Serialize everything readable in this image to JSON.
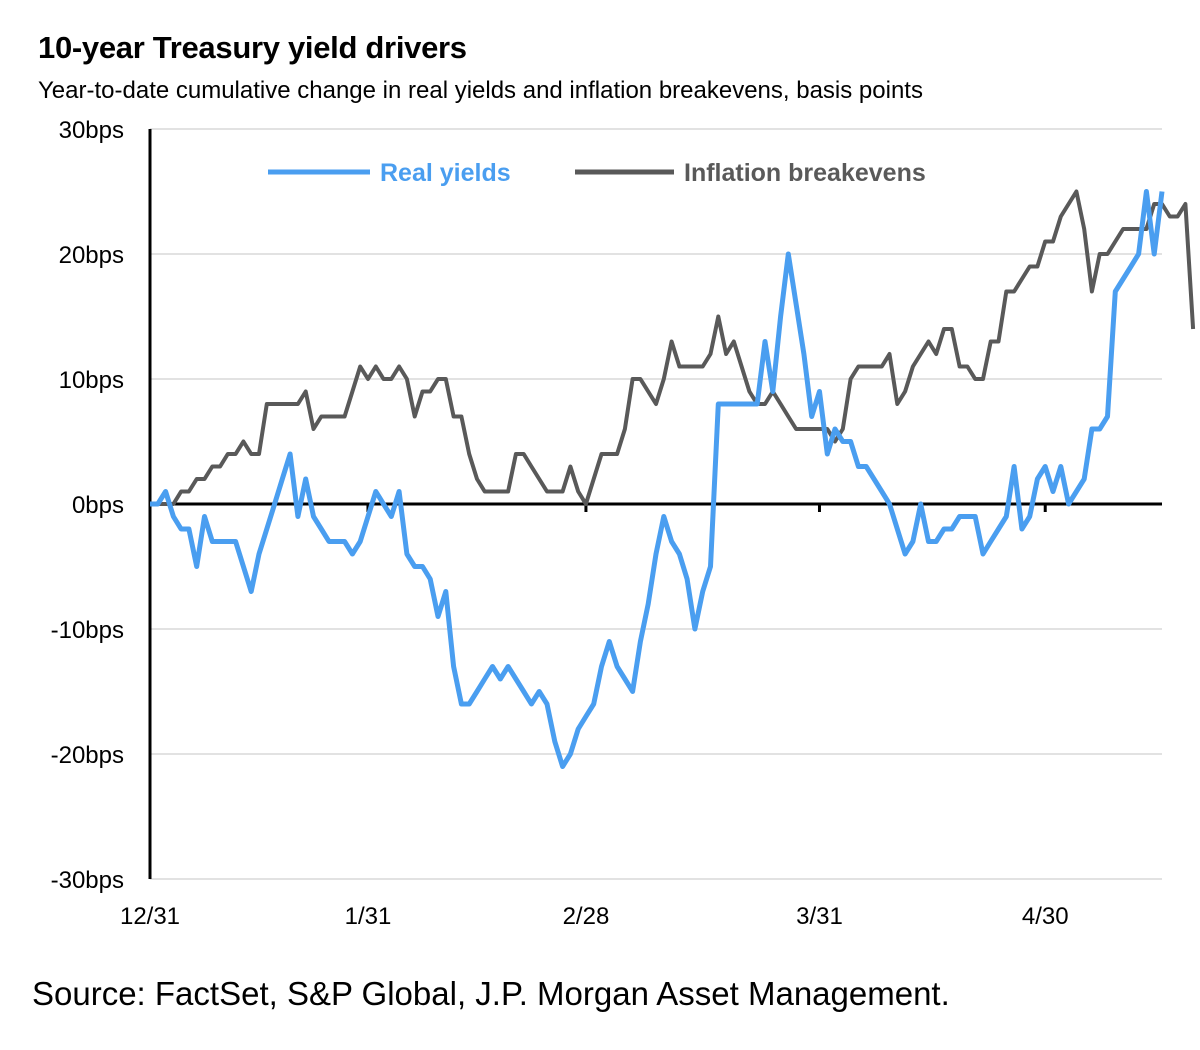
{
  "title": "10-year Treasury yield drivers",
  "subtitle": "Year-to-date cumulative change in real yields and inflation breakevens, basis points",
  "source": "Source: FactSet, S&P Global, J.P. Morgan Asset Management.",
  "chart_data": {
    "type": "line",
    "ylim": [
      -30,
      30
    ],
    "y_ticks": [
      30,
      20,
      10,
      0,
      -10,
      -20,
      -30
    ],
    "y_tick_labels": [
      "30bps",
      "20bps",
      "10bps",
      "0bps",
      "-10bps",
      "-20bps",
      "-30bps"
    ],
    "x_tick_labels": [
      "12/31",
      "1/31",
      "2/28",
      "3/31",
      "4/30"
    ],
    "grid": true,
    "legend_position": "top",
    "colors": {
      "real_yields": "#4a9ef0",
      "inflation_breakevens": "#595959"
    },
    "series": [
      {
        "name": "Real yields",
        "color": "#4a9ef0",
        "values": [
          0,
          0,
          1,
          -1,
          -2,
          -2,
          -5,
          -1,
          -3,
          -3,
          -3,
          -3,
          -5,
          -7,
          -4,
          -2,
          0,
          2,
          4,
          -1,
          2,
          -1,
          -2,
          -3,
          -3,
          -3,
          -4,
          -3,
          -1,
          1,
          0,
          -1,
          1,
          -4,
          -5,
          -5,
          -6,
          -9,
          -7,
          -13,
          -16,
          -16,
          -15,
          -14,
          -13,
          -14,
          -13,
          -14,
          -15,
          -16,
          -15,
          -16,
          -19,
          -21,
          -20,
          -18,
          -17,
          -16,
          -13,
          -11,
          -13,
          -14,
          -15,
          -11,
          -8,
          -4,
          -1,
          -3,
          -4,
          -6,
          -10,
          -7,
          -5,
          8,
          8,
          8,
          8,
          8,
          8,
          13,
          9,
          15,
          20,
          16,
          12,
          7,
          9,
          4,
          6,
          5,
          5,
          3,
          3,
          2,
          1,
          0,
          -2,
          -4,
          -3,
          0,
          -3,
          -3,
          -2,
          -2,
          -1,
          -1,
          -1,
          -4,
          -3,
          -2,
          -1,
          3,
          -2,
          -1,
          2,
          3,
          1,
          3,
          0,
          1,
          2,
          6,
          6,
          7,
          17,
          18,
          19,
          20,
          25,
          20,
          25
        ]
      },
      {
        "name": "Inflation breakevens",
        "color": "#595959",
        "values": [
          0,
          0,
          0,
          0,
          1,
          1,
          2,
          2,
          3,
          3,
          4,
          4,
          5,
          4,
          4,
          8,
          8,
          8,
          8,
          8,
          9,
          6,
          7,
          7,
          7,
          7,
          9,
          11,
          10,
          11,
          10,
          10,
          11,
          10,
          7,
          9,
          9,
          10,
          10,
          7,
          7,
          4,
          2,
          1,
          1,
          1,
          1,
          4,
          4,
          3,
          2,
          1,
          1,
          1,
          3,
          1,
          0,
          2,
          4,
          4,
          4,
          6,
          10,
          10,
          9,
          8,
          10,
          13,
          11,
          11,
          11,
          11,
          12,
          15,
          12,
          13,
          11,
          9,
          8,
          8,
          9,
          8,
          7,
          6,
          6,
          6,
          6,
          6,
          5,
          6,
          10,
          11,
          11,
          11,
          11,
          12,
          8,
          9,
          11,
          12,
          13,
          12,
          14,
          14,
          11,
          11,
          10,
          10,
          13,
          13,
          17,
          17,
          18,
          19,
          19,
          21,
          21,
          23,
          24,
          25,
          22,
          17,
          20,
          20,
          21,
          22,
          22,
          22,
          22,
          24,
          24,
          23,
          23,
          24,
          14
        ]
      }
    ]
  }
}
